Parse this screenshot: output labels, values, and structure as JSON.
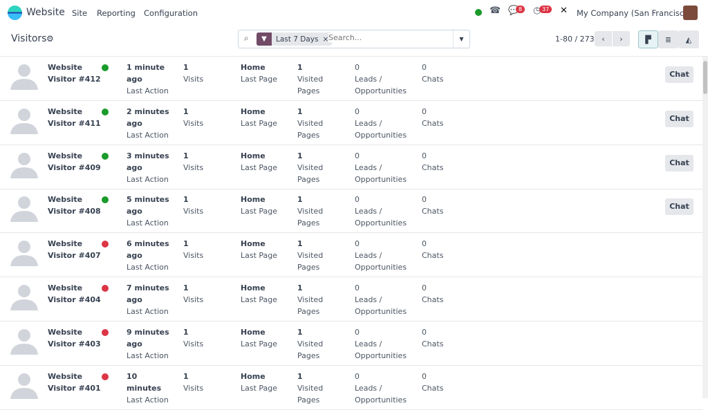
{
  "nav": {
    "app": "Website",
    "menus": [
      "Site",
      "Reporting",
      "Configuration"
    ],
    "messages_count": "8",
    "activities_count": "37",
    "company": "My Company (San Francisco)",
    "status_color": "#1a9b2b"
  },
  "control": {
    "title": "Visitors",
    "facet": "Last 7 Days",
    "search_placeholder": "Search...",
    "pager": "1-80 / 273",
    "views": [
      "kanban",
      "list",
      "graph"
    ],
    "active_view": "kanban"
  },
  "labels": {
    "last_action": "Last Action",
    "visits": "Visits",
    "last_page": "Last Page",
    "visited": "Visited",
    "pages": "Pages",
    "leads": "Leads /",
    "opps": "Opportunities",
    "chats": "Chats",
    "chat_btn": "Chat"
  },
  "rows": [
    {
      "name1": "Website",
      "name2": "Visitor #412",
      "online": true,
      "t1": "1 minute",
      "t2": "ago",
      "visits": "1",
      "page": "Home",
      "visited": "1",
      "leads": "0",
      "chats": "0"
    },
    {
      "name1": "Website",
      "name2": "Visitor #411",
      "online": true,
      "t1": "2 minutes",
      "t2": "ago",
      "visits": "1",
      "page": "Home",
      "visited": "1",
      "leads": "0",
      "chats": "0"
    },
    {
      "name1": "Website",
      "name2": "Visitor #409",
      "online": true,
      "t1": "3 minutes",
      "t2": "ago",
      "visits": "1",
      "page": "Home",
      "visited": "1",
      "leads": "0",
      "chats": "0"
    },
    {
      "name1": "Website",
      "name2": "Visitor #408",
      "online": true,
      "t1": "5 minutes",
      "t2": "ago",
      "visits": "1",
      "page": "Home",
      "visited": "1",
      "leads": "0",
      "chats": "0"
    },
    {
      "name1": "Website",
      "name2": "Visitor #407",
      "online": false,
      "t1": "6 minutes",
      "t2": "ago",
      "visits": "1",
      "page": "Home",
      "visited": "1",
      "leads": "0",
      "chats": "0"
    },
    {
      "name1": "Website",
      "name2": "Visitor #404",
      "online": false,
      "t1": "7 minutes",
      "t2": "ago",
      "visits": "1",
      "page": "Home",
      "visited": "1",
      "leads": "0",
      "chats": "0"
    },
    {
      "name1": "Website",
      "name2": "Visitor #403",
      "online": false,
      "t1": "9 minutes",
      "t2": "ago",
      "visits": "1",
      "page": "Home",
      "visited": "1",
      "leads": "0",
      "chats": "0"
    },
    {
      "name1": "Website",
      "name2": "Visitor #401",
      "online": false,
      "t1": "10",
      "t2": "minutes",
      "visits": "1",
      "page": "Home",
      "visited": "1",
      "leads": "0",
      "chats": "0"
    }
  ]
}
